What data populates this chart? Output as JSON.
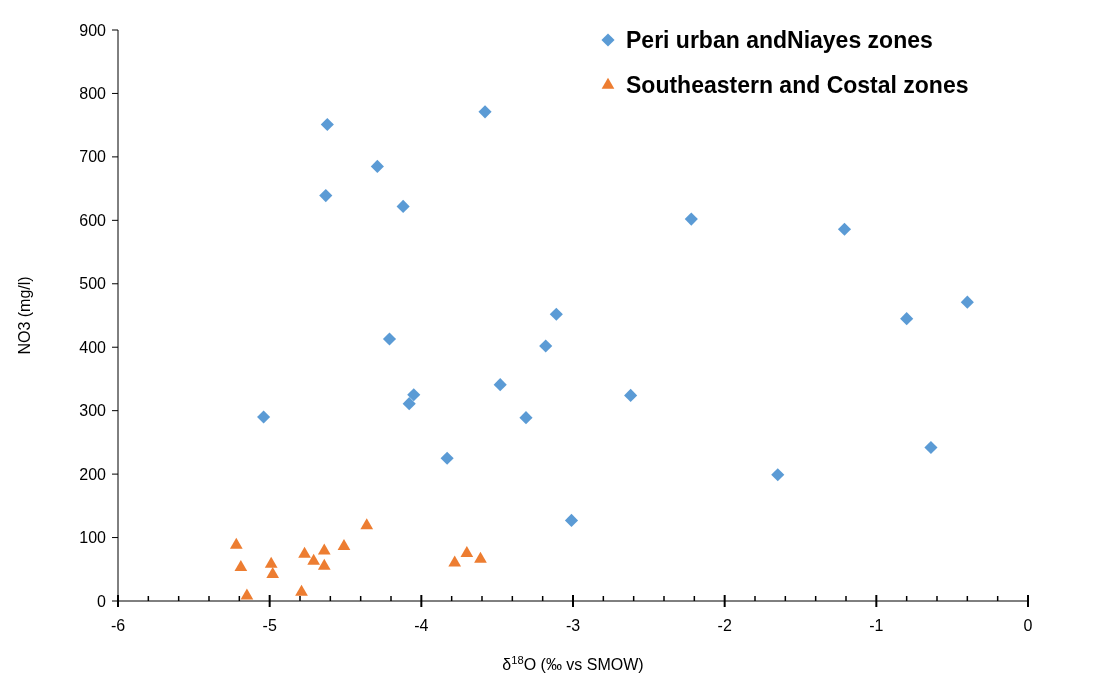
{
  "chart_data": {
    "type": "scatter",
    "xlabel": "δ$^{18}$O (‰ vs SMOW)",
    "ylabel": "NO3 (mg/l)",
    "xlim": [
      -6,
      0
    ],
    "ylim": [
      0,
      900
    ],
    "xticks": [
      -6,
      {
        "value": -5.8,
        "label": null
      },
      {
        "value": -5.6,
        "label": null
      },
      {
        "value": -5.4,
        "label": null
      },
      {
        "value": -5.2,
        "label": null
      },
      -5,
      {
        "value": -4.8,
        "label": null
      },
      {
        "value": -4.6,
        "label": null
      },
      {
        "value": -4.4,
        "label": null
      },
      {
        "value": -4.2,
        "label": null
      },
      -4,
      {
        "value": -3.8,
        "label": null
      },
      {
        "value": -3.6,
        "label": null
      },
      {
        "value": -3.4,
        "label": null
      },
      {
        "value": -3.2,
        "label": null
      },
      -3,
      {
        "value": -2.8,
        "label": null
      },
      {
        "value": -2.6,
        "label": null
      },
      {
        "value": -2.4,
        "label": null
      },
      {
        "value": -2.2,
        "label": null
      },
      -2,
      {
        "value": -1.8,
        "label": null
      },
      {
        "value": -1.6,
        "label": null
      },
      {
        "value": -1.4,
        "label": null
      },
      {
        "value": -1.2,
        "label": null
      },
      -1,
      {
        "value": -0.8,
        "label": null
      },
      {
        "value": -0.6,
        "label": null
      },
      {
        "value": -0.4,
        "label": null
      },
      {
        "value": -0.2,
        "label": null
      },
      0
    ],
    "yticks": [
      0,
      100,
      200,
      300,
      400,
      500,
      600,
      700,
      800,
      900
    ],
    "grid": false,
    "legend": "top right",
    "series": [
      {
        "name": "Peri urban andNiayes zones",
        "color": "#5b9bd5",
        "marker": "diamond",
        "x": [
          -5.04,
          -4.63,
          -4.62,
          -4.29,
          -4.21,
          -4.12,
          -4.08,
          -4.05,
          -3.83,
          -3.58,
          -3.48,
          -3.31,
          -3.18,
          -3.11,
          -3.01,
          -2.62,
          -2.22,
          -1.65,
          -1.21,
          -0.8,
          -0.64,
          -0.4
        ],
        "values": [
          290,
          639,
          751,
          685,
          413,
          622,
          311,
          325,
          225,
          771,
          341,
          289,
          402,
          452,
          127,
          324,
          602,
          199,
          586,
          445,
          242,
          471
        ]
      },
      {
        "name": "Southeastern and Costal zones",
        "color": "#ed7d31",
        "marker": "triangle",
        "x": [
          -5.22,
          -5.19,
          -5.15,
          -4.99,
          -4.98,
          -4.79,
          -4.77,
          -4.71,
          -4.64,
          -4.64,
          -4.51,
          -4.36,
          -3.78,
          -3.7,
          -3.61
        ],
        "values": [
          88,
          53,
          8,
          58,
          42,
          14,
          74,
          63,
          79,
          55,
          86,
          119,
          60,
          75,
          66
        ]
      }
    ]
  }
}
